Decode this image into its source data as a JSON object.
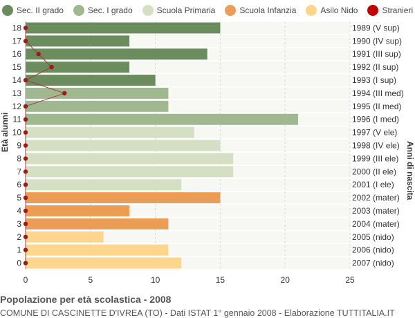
{
  "legend": [
    {
      "label": "Sec. II grado",
      "color": "#6b8c5c",
      "icon": "circle"
    },
    {
      "label": "Sec. I grado",
      "color": "#9fb88f",
      "icon": "circle"
    },
    {
      "label": "Scuola Primaria",
      "color": "#d4dfc4",
      "icon": "circle"
    },
    {
      "label": "Scuola Infanzia",
      "color": "#ec9d55",
      "icon": "circle"
    },
    {
      "label": "Asilo Nido",
      "color": "#fcd68c",
      "icon": "circle"
    },
    {
      "label": "Stranieri",
      "color": "#c00000",
      "icon": "circle"
    }
  ],
  "footer": {
    "title": "Popolazione per età scolastica - 2008",
    "subtitle": "COMUNE DI CASCINETTE D'IVREA (TO) - Dati ISTAT 1° gennaio 2008 - Elaborazione TUTTITALIA.IT"
  },
  "chart_data": {
    "type": "bar",
    "orientation": "horizontal",
    "ylabel": "Età alunni",
    "ylabel_right": "Anni di nascita",
    "xlim": [
      0,
      25
    ],
    "xticks": [
      0,
      5,
      10,
      15,
      20,
      25
    ],
    "grid": true,
    "legend_position": "top",
    "categories": [
      "18",
      "17",
      "16",
      "15",
      "14",
      "13",
      "12",
      "11",
      "10",
      "9",
      "8",
      "7",
      "6",
      "5",
      "4",
      "3",
      "2",
      "1",
      "0"
    ],
    "birth_years": [
      "1989 (V sup)",
      "1990 (IV sup)",
      "1991 (III sup)",
      "1992 (II sup)",
      "1993 (I sup)",
      "1994 (III med)",
      "1995 (II med)",
      "1996 (I med)",
      "1997 (V ele)",
      "1998 (IV ele)",
      "1999 (III ele)",
      "2000 (II ele)",
      "2001 (I ele)",
      "2002 (mater)",
      "2003 (mater)",
      "2004 (mater)",
      "2005 (nido)",
      "2006 (nido)",
      "2007 (nido)"
    ],
    "values": [
      15,
      8,
      14,
      8,
      10,
      11,
      11,
      21,
      13,
      15,
      16,
      16,
      12,
      15,
      8,
      11,
      6,
      11,
      12
    ],
    "groups": [
      "Sec. II grado",
      "Sec. II grado",
      "Sec. II grado",
      "Sec. II grado",
      "Sec. II grado",
      "Sec. I grado",
      "Sec. I grado",
      "Sec. I grado",
      "Scuola Primaria",
      "Scuola Primaria",
      "Scuola Primaria",
      "Scuola Primaria",
      "Scuola Primaria",
      "Scuola Infanzia",
      "Scuola Infanzia",
      "Scuola Infanzia",
      "Asilo Nido",
      "Asilo Nido",
      "Asilo Nido"
    ],
    "series": [
      {
        "name": "Stranieri",
        "type": "line",
        "values": [
          0,
          0,
          1,
          2,
          0,
          3,
          0,
          0,
          0,
          0,
          0,
          0,
          0,
          0,
          0,
          0,
          0,
          0,
          0
        ]
      }
    ]
  }
}
